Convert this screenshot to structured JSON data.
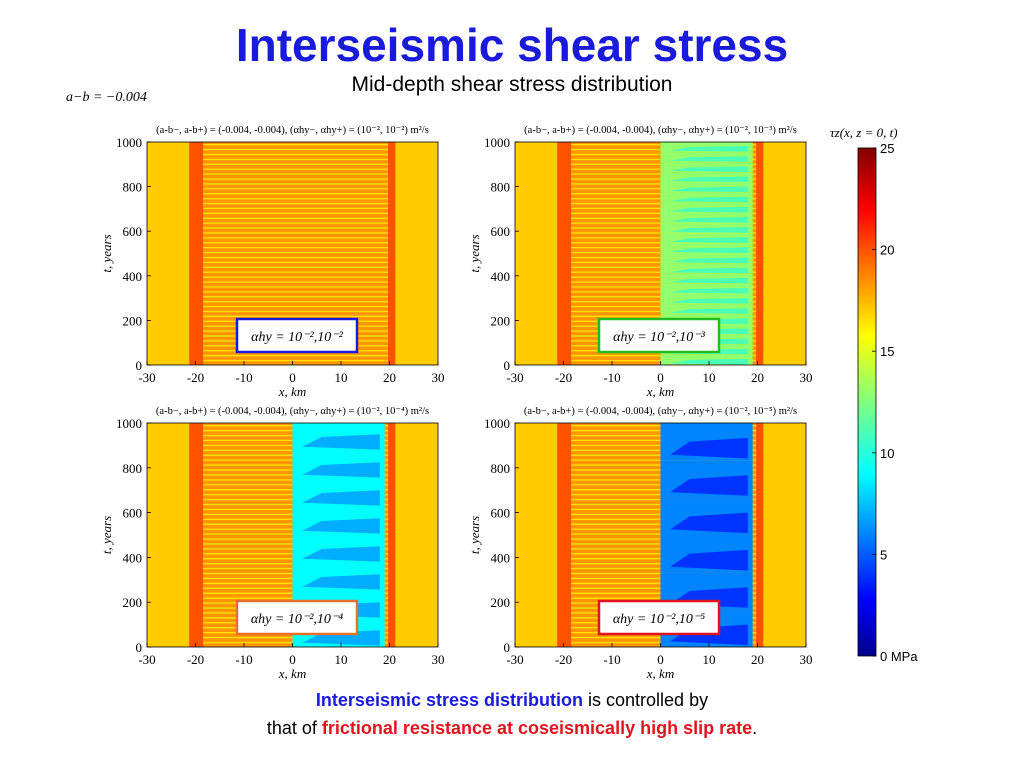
{
  "title": "Interseismic shear stress",
  "subtitle": "Mid-depth shear stress distribution",
  "param_label": "a−b = −0.004",
  "colorbar": {
    "title": "τz(x, z = 0, t)",
    "ticks": [
      "25",
      "20",
      "15",
      "10",
      "5",
      "0 MPa"
    ],
    "tick_values": [
      25,
      20,
      15,
      10,
      5,
      0
    ],
    "range": [
      0,
      25
    ]
  },
  "caption": {
    "line1_bold": "Interseismic stress distribution",
    "line1_rest": " is controlled by",
    "line2_start": "that of ",
    "line2_bold": "frictional resistance at coseismically high slip rate",
    "line2_end": "."
  },
  "chart_data": [
    {
      "type": "heatmap",
      "title": "(a-b−, a-b+) = (-0.004, -0.004), (αhy−, αhy+) = (10⁻², 10⁻²) m²/s",
      "xlabel": "x, km",
      "ylabel": "t, years",
      "xlim": [
        -30,
        30
      ],
      "ylim": [
        0,
        1000
      ],
      "xticks": [
        "-30",
        "-20",
        "-10",
        "0",
        "10",
        "20",
        "30"
      ],
      "yticks": [
        "0",
        "200",
        "400",
        "600",
        "800",
        "1000"
      ],
      "annotation": "αhy = 10⁻²,10⁻²",
      "annotation_color": "#1a1adc",
      "fault_zone_x": [
        -20,
        20
      ],
      "low_stress_zone": null
    },
    {
      "type": "heatmap",
      "title": "(a-b−, a-b+) = (-0.004, -0.004), (αhy−, αhy+) = (10⁻², 10⁻³) m²/s",
      "xlabel": "x, km",
      "ylabel": "t, years",
      "xlim": [
        -30,
        30
      ],
      "ylim": [
        0,
        1000
      ],
      "xticks": [
        "-30",
        "-20",
        "-10",
        "0",
        "10",
        "20",
        "30"
      ],
      "yticks": [
        "0",
        "200",
        "400",
        "600",
        "800",
        "1000"
      ],
      "annotation": "αhy = 10⁻²,10⁻³",
      "annotation_color": "#22bb22",
      "fault_zone_x": [
        -20,
        20
      ],
      "low_stress_zone": {
        "x": [
          0,
          19
        ],
        "stress_mpa": 11
      }
    },
    {
      "type": "heatmap",
      "title": "(a-b−, a-b+) = (-0.004, -0.004), (αhy−, αhy+) = (10⁻², 10⁻⁴) m²/s",
      "xlabel": "x, km",
      "ylabel": "t, years",
      "xlim": [
        -30,
        30
      ],
      "ylim": [
        0,
        1000
      ],
      "xticks": [
        "-30",
        "-20",
        "-10",
        "0",
        "10",
        "20",
        "30"
      ],
      "yticks": [
        "0",
        "200",
        "400",
        "600",
        "800",
        "1000"
      ],
      "annotation": "αhy = 10⁻²,10⁻⁴",
      "annotation_color": "#e8702a",
      "fault_zone_x": [
        -20,
        20
      ],
      "low_stress_zone": {
        "x": [
          0,
          19
        ],
        "stress_mpa": 7
      }
    },
    {
      "type": "heatmap",
      "title": "(a-b−, a-b+) = (-0.004, -0.004), (αhy−, αhy+) = (10⁻², 10⁻⁵) m²/s",
      "xlabel": "x, km",
      "ylabel": "t, years",
      "xlim": [
        -30,
        30
      ],
      "ylim": [
        0,
        1000
      ],
      "xticks": [
        "-30",
        "-20",
        "-10",
        "0",
        "10",
        "20",
        "30"
      ],
      "yticks": [
        "0",
        "200",
        "400",
        "600",
        "800",
        "1000"
      ],
      "annotation": "αhy = 10⁻²,10⁻⁵",
      "annotation_color": "#e0141e",
      "fault_zone_x": [
        -20,
        20
      ],
      "low_stress_zone": {
        "x": [
          0,
          19
        ],
        "stress_mpa": 4
      }
    }
  ]
}
